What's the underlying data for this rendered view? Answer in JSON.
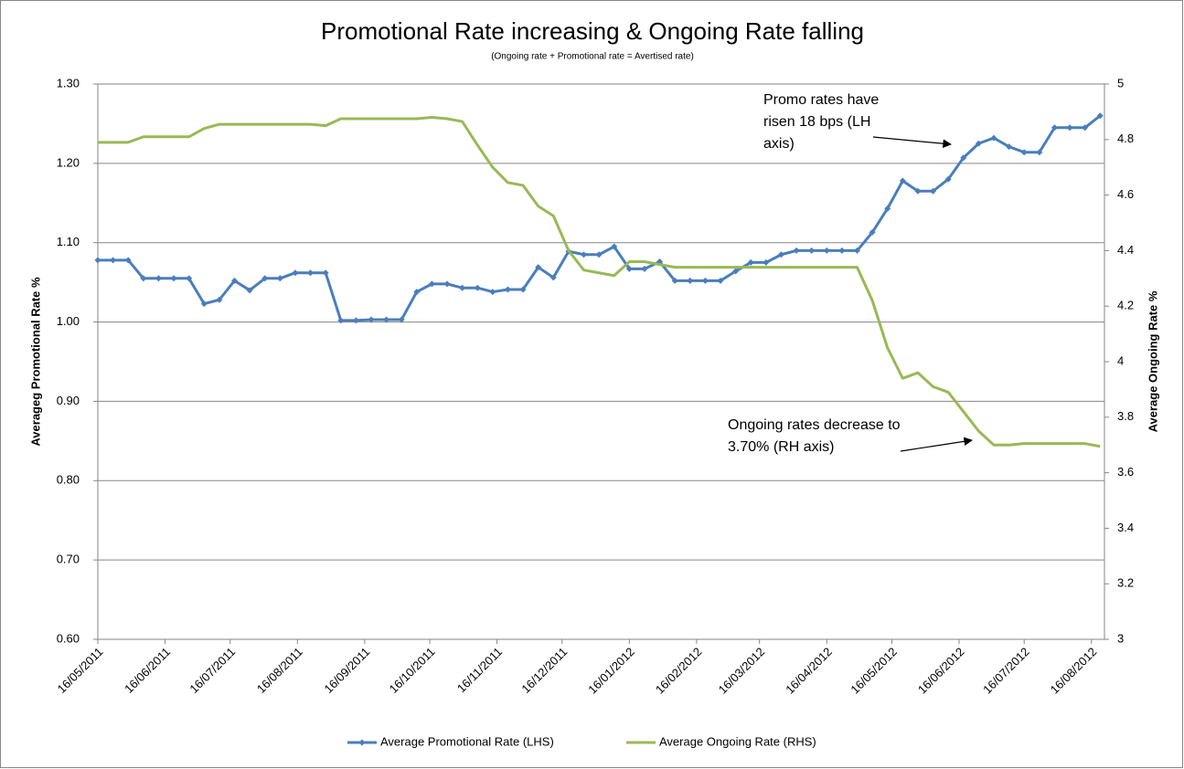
{
  "chart_data": {
    "type": "line",
    "title": "Promotional Rate increasing & Ongoing Rate falling",
    "subtitle": "(Ongoing rate + Promotional rate = Avertised rate)",
    "y_label": "Averageg Promotional Rate %",
    "y2_label": "Average Ongoing Rate %",
    "x": [
      "16/05/2011",
      "23/05/2011",
      "30/05/2011",
      "06/06/2011",
      "13/06/2011",
      "20/06/2011",
      "27/06/2011",
      "04/07/2011",
      "11/07/2011",
      "18/07/2011",
      "25/07/2011",
      "01/08/2011",
      "08/08/2011",
      "15/08/2011",
      "22/08/2011",
      "29/08/2011",
      "05/09/2011",
      "12/09/2011",
      "19/09/2011",
      "26/09/2011",
      "03/10/2011",
      "10/10/2011",
      "17/10/2011",
      "24/10/2011",
      "31/10/2011",
      "07/11/2011",
      "14/11/2011",
      "21/11/2011",
      "28/11/2011",
      "05/12/2011",
      "12/12/2011",
      "19/12/2011",
      "26/12/2011",
      "02/01/2012",
      "09/01/2012",
      "16/01/2012",
      "23/01/2012",
      "30/01/2012",
      "06/02/2012",
      "13/02/2012",
      "20/02/2012",
      "27/02/2012",
      "05/03/2012",
      "12/03/2012",
      "19/03/2012",
      "26/03/2012",
      "02/04/2012",
      "09/04/2012",
      "16/04/2012",
      "23/04/2012",
      "30/04/2012",
      "07/05/2012",
      "14/05/2012",
      "21/05/2012",
      "28/05/2012",
      "04/06/2012",
      "11/06/2012",
      "18/06/2012",
      "25/06/2012",
      "02/07/2012",
      "09/07/2012",
      "16/07/2012",
      "23/07/2012",
      "30/07/2012",
      "06/08/2012",
      "13/08/2012",
      "20/08/2012"
    ],
    "xlim": [
      "16/05/2011",
      "22/08/2012"
    ],
    "xticks": [
      "16/05/2011",
      "16/06/2011",
      "16/07/2011",
      "16/08/2011",
      "16/09/2011",
      "16/10/2011",
      "16/11/2011",
      "16/12/2011",
      "16/01/2012",
      "16/02/2012",
      "16/03/2012",
      "16/04/2012",
      "16/05/2012",
      "16/06/2012",
      "16/07/2012",
      "16/08/2012"
    ],
    "ylim": [
      0.6,
      1.3
    ],
    "yticks": [
      {
        "value": 0.6,
        "label": "0.60"
      },
      {
        "value": 0.7,
        "label": "0.70"
      },
      {
        "value": 0.8,
        "label": "0.80"
      },
      {
        "value": 0.9,
        "label": "0.90"
      },
      {
        "value": 1.0,
        "label": "1.00"
      },
      {
        "value": 1.1,
        "label": "1.10"
      },
      {
        "value": 1.2,
        "label": "1.20"
      },
      {
        "value": 1.3,
        "label": "1.30"
      }
    ],
    "y2lim": [
      3,
      5
    ],
    "y2ticks": [
      3,
      3.2,
      3.4,
      3.6,
      3.8,
      4,
      4.2,
      4.4,
      4.6,
      4.8,
      5
    ],
    "grid": true,
    "legend": "bottom",
    "series": [
      {
        "name": "Average Promotional Rate (LHS)",
        "color": "#4a7ebb",
        "marker": "diamond",
        "values": [
          1.078,
          1.078,
          1.078,
          1.055,
          1.055,
          1.055,
          1.055,
          1.023,
          1.028,
          1.052,
          1.04,
          1.055,
          1.055,
          1.062,
          1.062,
          1.062,
          1.002,
          1.002,
          1.003,
          1.003,
          1.003,
          1.038,
          1.048,
          1.048,
          1.043,
          1.043,
          1.038,
          1.041,
          1.041,
          1.069,
          1.056,
          1.089,
          1.085,
          1.085,
          1.095,
          1.067,
          1.067,
          1.076,
          1.052,
          1.052,
          1.052,
          1.052,
          1.064,
          1.075,
          1.075,
          1.085,
          1.09,
          1.09,
          1.09,
          1.09,
          1.09,
          1.113,
          1.143,
          1.178,
          1.165,
          1.165,
          1.18,
          1.207,
          1.225,
          1.232,
          1.221,
          1.214,
          1.214,
          1.245,
          1.245,
          1.245,
          1.26
        ]
      },
      {
        "name": "Average Ongoing Rate (RHS)",
        "color": "#98b954",
        "axis": "y2",
        "values": [
          4.79,
          4.79,
          4.79,
          4.81,
          4.81,
          4.81,
          4.81,
          4.84,
          4.855,
          4.855,
          4.855,
          4.855,
          4.855,
          4.855,
          4.855,
          4.85,
          4.875,
          4.875,
          4.875,
          4.875,
          4.875,
          4.875,
          4.88,
          4.875,
          4.865,
          4.78,
          4.7,
          4.645,
          4.635,
          4.56,
          4.525,
          4.4,
          4.33,
          4.32,
          4.31,
          4.36,
          4.36,
          4.35,
          4.34,
          4.34,
          4.34,
          4.34,
          4.34,
          4.34,
          4.34,
          4.34,
          4.34,
          4.34,
          4.34,
          4.34,
          4.34,
          4.22,
          4.05,
          3.94,
          3.96,
          3.91,
          3.89,
          3.82,
          3.75,
          3.7,
          3.7,
          3.705,
          3.705,
          3.705,
          3.705,
          3.705,
          3.695
        ]
      }
    ],
    "annotations": [
      {
        "lines": [
          "Promo rates have",
          "risen 18 bps (LH",
          "axis)"
        ]
      },
      {
        "lines": [
          "Ongoing rates  decrease to",
          "3.70% (RH axis)"
        ]
      }
    ]
  }
}
